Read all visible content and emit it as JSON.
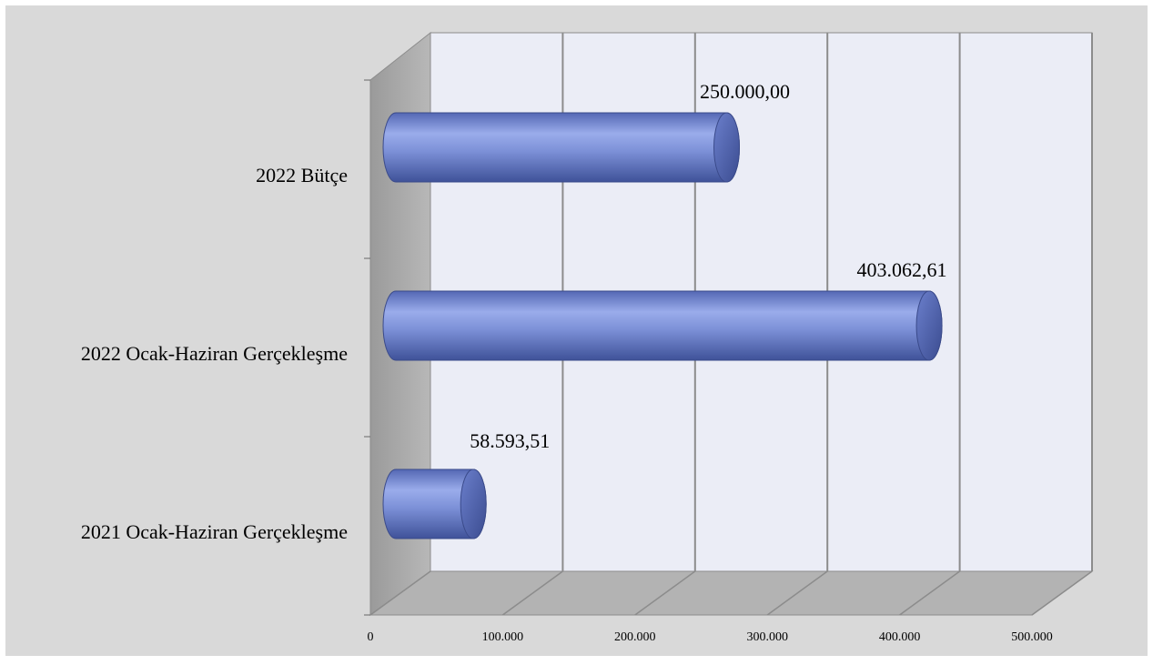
{
  "chart_data": {
    "type": "bar",
    "orientation": "horizontal",
    "style": "3d-cylinder",
    "categories": [
      "2022 Bütçe",
      "2022 Ocak-Haziran Gerçekleşme",
      "2021 Ocak-Haziran Gerçekleşme"
    ],
    "values": [
      250000.0,
      403062.61,
      58593.51
    ],
    "data_labels": [
      "250.000,00",
      "403.062,61",
      "58.593,51"
    ],
    "xlim": [
      0,
      500000
    ],
    "x_ticks": [
      0,
      100000,
      200000,
      300000,
      400000,
      500000
    ],
    "x_tick_labels": [
      "0",
      "100.000",
      "200.000",
      "300.000",
      "400.000",
      "500.000"
    ],
    "grid": true,
    "colors": {
      "bar": "#7b8fd6",
      "bar_light": "#a3b4ee",
      "bar_dark": "#4a5ea6",
      "plot_back": "#ebedf6",
      "side_wall": "#a6a6a6",
      "floor": "#b3b3b3",
      "background": "#d9d9d9"
    }
  }
}
